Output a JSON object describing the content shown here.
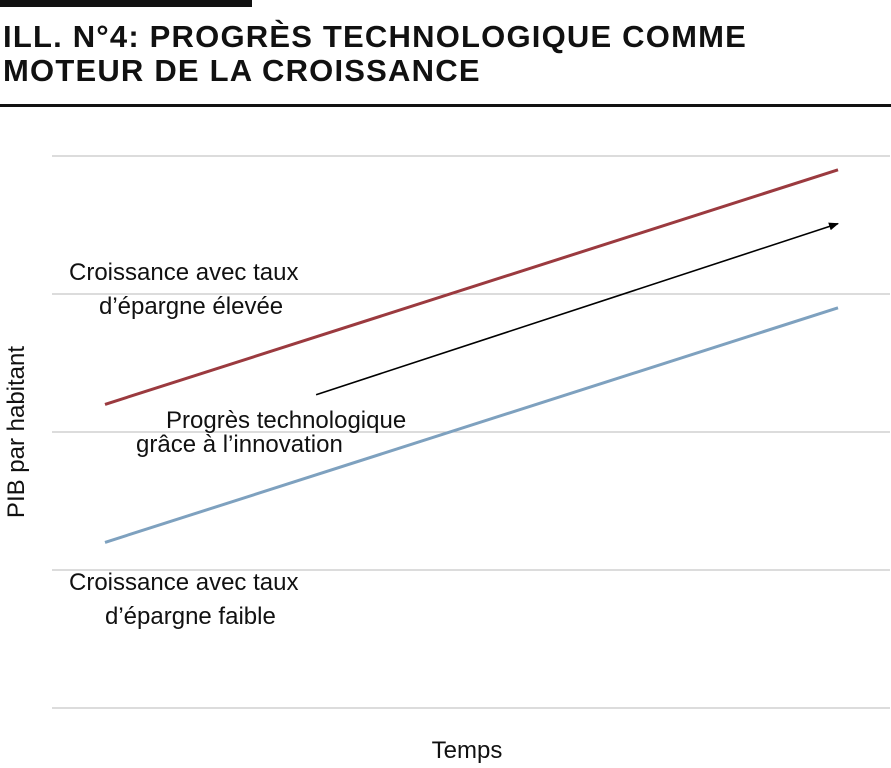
{
  "title": "ILL. N°4: PROGRÈS TECHNOLOGIQUE COMME MOTEUR DE LA CROISSANCE",
  "title_lines": [
    "ILL. N°4: PROGRÈS TECHNOLOGIQUE COMME",
    "MOTEUR DE LA CROISSANCE"
  ],
  "chart_data": {
    "type": "line",
    "xlabel": "Temps",
    "ylabel": "PIB par habitant",
    "grid": true,
    "legend": "none",
    "xlim": [
      0,
      1
    ],
    "ylim": [
      0,
      4
    ],
    "series": [
      {
        "name": "Croissance avec taux d’épargne élevée",
        "label_lines": [
          "Croissance avec taux",
          "d’épargne élevée"
        ],
        "color": "#9b3a3f",
        "x": [
          0,
          1
        ],
        "y": [
          2.2,
          3.9
        ]
      },
      {
        "name": "Croissance avec taux d’épargne faible",
        "label_lines": [
          "Croissance avec taux",
          "d’épargne faible"
        ],
        "color": "#7ea1bf",
        "x": [
          0,
          1
        ],
        "y": [
          1.2,
          2.9
        ]
      }
    ],
    "annotation": {
      "label_lines": [
        "Progrès technologique",
        "grâce à l’innovation"
      ],
      "arrow_from": [
        0.288,
        2.27
      ],
      "arrow_to": [
        1.0,
        3.51
      ],
      "color": "#000000"
    }
  }
}
